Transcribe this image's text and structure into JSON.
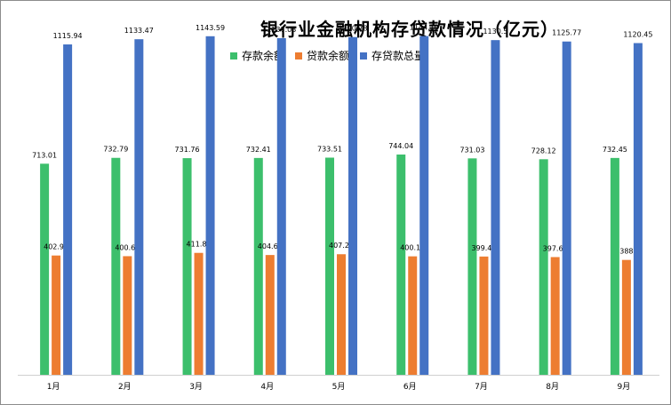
{
  "chart_data": {
    "type": "bar",
    "title": "银行业金融机构存贷款情况（亿元）",
    "categories": [
      "1月",
      "2月",
      "3月",
      "4月",
      "5月",
      "6月",
      "7月",
      "8月",
      "9月"
    ],
    "series": [
      {
        "name": "存款余额",
        "color": "#3cbf6c",
        "values": [
          713.01,
          732.79,
          731.76,
          732.41,
          733.51,
          744.04,
          731.03,
          728.12,
          732.45
        ],
        "labels": [
          "713.01",
          "732.79",
          "731.76",
          "732.41",
          "733.51",
          "744.04",
          "731.03",
          "728.12",
          "732.45"
        ]
      },
      {
        "name": "贷款余额",
        "color": "#ed7d31",
        "values": [
          402.93,
          400.68,
          411.83,
          404.62,
          407.27,
          400.15,
          399.47,
          397.65,
          388
        ],
        "labels": [
          "402.93",
          "400.68",
          "411.83",
          "404.62",
          "407.27",
          "400.15",
          "399.47",
          "397.65",
          "388"
        ]
      },
      {
        "name": "存贷款总量",
        "color": "#4472c4",
        "values": [
          1115.94,
          1133.47,
          1143.59,
          1137.03,
          1140.78,
          1144.19,
          1130.5,
          1125.77,
          1120.45
        ],
        "labels": [
          "1115.94",
          "1133.47",
          "1143.59",
          "1137.03",
          "1140.78",
          "1144.19",
          "1130.5",
          "1125.77",
          "1120.45"
        ]
      }
    ],
    "ylim": [
      0,
      1200
    ],
    "grid": false,
    "legend": "top"
  }
}
